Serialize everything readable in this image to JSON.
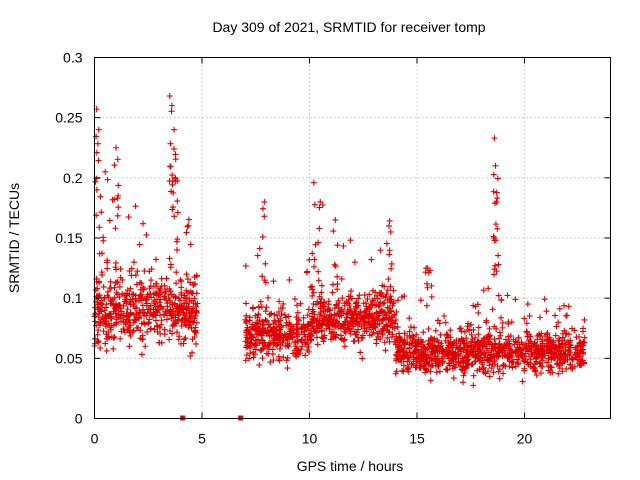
{
  "chart_data": {
    "type": "scatter",
    "title": "Day 309 of 2021, SRMTID for receiver tomp",
    "xlabel": "GPS time / hours",
    "ylabel": "SRMTID / TECUs",
    "xlim": [
      0,
      24
    ],
    "ylim": [
      0,
      0.3
    ],
    "x_ticks": [
      0,
      5,
      10,
      15,
      20
    ],
    "x_tick_labels": [
      "0",
      "5",
      "10",
      "15",
      "20"
    ],
    "y_ticks": [
      0,
      0.05,
      0.1,
      0.15,
      0.2,
      0.25,
      0.3
    ],
    "y_tick_labels": [
      "0",
      "0.05",
      "0.1",
      "0.15",
      "0.2",
      "0.25",
      "0.3"
    ],
    "grid": true,
    "marker": "plus",
    "series": [
      {
        "name": "SRMTID",
        "color": "#e00000",
        "segments": [
          {
            "x_start": 0.0,
            "x_end": 4.8,
            "baseline": 0.09,
            "spread": 0.05
          },
          {
            "x_start": 7.0,
            "x_end": 10.0,
            "baseline": 0.07,
            "spread": 0.035
          },
          {
            "x_start": 10.0,
            "x_end": 14.0,
            "baseline": 0.085,
            "spread": 0.04
          },
          {
            "x_start": 14.0,
            "x_end": 22.8,
            "baseline": 0.055,
            "spread": 0.03
          }
        ],
        "peaks": [
          {
            "x": 0.1,
            "y": 0.257
          },
          {
            "x": 0.2,
            "y": 0.24
          },
          {
            "x": 0.5,
            "y": 0.205
          },
          {
            "x": 1.0,
            "y": 0.225
          },
          {
            "x": 1.1,
            "y": 0.185
          },
          {
            "x": 3.5,
            "y": 0.268
          },
          {
            "x": 3.6,
            "y": 0.26
          },
          {
            "x": 3.7,
            "y": 0.24
          },
          {
            "x": 3.75,
            "y": 0.2
          },
          {
            "x": 7.9,
            "y": 0.18
          },
          {
            "x": 10.2,
            "y": 0.196
          },
          {
            "x": 10.5,
            "y": 0.18
          },
          {
            "x": 11.2,
            "y": 0.165
          },
          {
            "x": 13.7,
            "y": 0.16
          },
          {
            "x": 15.5,
            "y": 0.125
          },
          {
            "x": 18.6,
            "y": 0.233
          },
          {
            "x": 18.65,
            "y": 0.21
          },
          {
            "x": 18.7,
            "y": 0.18
          }
        ],
        "near_zero_points": [
          {
            "x": 4.1,
            "y": 0.0
          },
          {
            "x": 6.8,
            "y": 0.0
          }
        ]
      }
    ]
  }
}
